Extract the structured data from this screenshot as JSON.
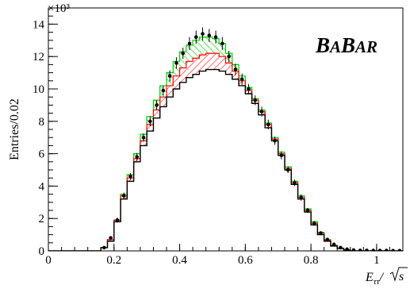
{
  "chart_data": {
    "type": "histogram",
    "title": "",
    "brand": {
      "lead1": "B",
      "rest1": "A",
      "lead2": "B",
      "rest2": "AR"
    },
    "ylabel": "Entries/0.02",
    "yscale_label": "×10³",
    "xlabel": {
      "main": "E",
      "sub": "ττ",
      "div": "/",
      "sqrt_arg": "s"
    },
    "xlim": [
      0,
      1.08
    ],
    "ylim": [
      0,
      15
    ],
    "xticks": [
      0,
      0.2,
      0.4,
      0.6,
      0.8,
      1
    ],
    "xtick_labels": [
      "0",
      "0.2",
      "0.4",
      "0.6",
      "0.8",
      "1"
    ],
    "yticks": [
      0,
      2,
      4,
      6,
      8,
      10,
      12,
      14
    ],
    "ytick_labels": [
      "0",
      "2",
      "4",
      "6",
      "8",
      "10",
      "12",
      "14"
    ],
    "grid": false,
    "bin_width": 0.02,
    "bin_start": 0.0,
    "colors": {
      "base": "#000000",
      "band_red": "#ff0000",
      "band_green": "#00cc00",
      "data": "#000000"
    },
    "series": [
      {
        "role": "base-mc",
        "values": [
          0,
          0,
          0,
          0,
          0,
          0,
          0,
          0,
          0.2,
          0.6,
          1.8,
          3.2,
          4.3,
          5.5,
          6.5,
          7.4,
          8.2,
          8.9,
          9.5,
          10.0,
          10.4,
          10.7,
          10.9,
          11.1,
          11.2,
          11.2,
          11.1,
          10.9,
          10.6,
          10.2,
          9.7,
          9.1,
          8.4,
          7.6,
          6.8,
          5.9,
          5.0,
          4.1,
          3.2,
          2.4,
          1.6,
          1.0,
          0.6,
          0.3,
          0.15,
          0.05,
          0,
          0,
          0,
          0,
          0,
          0,
          0,
          0
        ]
      },
      {
        "role": "red-band-top",
        "values": [
          0,
          0,
          0,
          0,
          0,
          0,
          0,
          0,
          0.2,
          0.7,
          1.9,
          3.4,
          4.5,
          5.7,
          6.8,
          7.8,
          8.7,
          9.5,
          10.2,
          10.8,
          11.3,
          11.7,
          11.9,
          12.1,
          12.2,
          12.2,
          12.0,
          11.6,
          11.1,
          10.5,
          9.9,
          9.3,
          8.6,
          7.8,
          6.9,
          6.0,
          5.1,
          4.2,
          3.3,
          2.5,
          1.7,
          1.1,
          0.65,
          0.32,
          0.16,
          0.05,
          0,
          0,
          0,
          0,
          0,
          0,
          0,
          0
        ]
      },
      {
        "role": "green-band-top",
        "values": [
          0,
          0,
          0,
          0,
          0,
          0,
          0,
          0,
          0.2,
          0.7,
          1.9,
          3.5,
          4.7,
          6.0,
          7.2,
          8.3,
          9.3,
          10.2,
          11.0,
          11.7,
          12.3,
          12.7,
          13.0,
          13.2,
          13.2,
          13.1,
          12.8,
          12.2,
          11.5,
          10.8,
          10.1,
          9.4,
          8.7,
          7.9,
          7.0,
          6.1,
          5.2,
          4.3,
          3.4,
          2.6,
          1.8,
          1.15,
          0.7,
          0.35,
          0.17,
          0.06,
          0,
          0,
          0,
          0,
          0,
          0,
          0,
          0
        ]
      },
      {
        "role": "data-points",
        "x": [
          0.01,
          0.03,
          0.05,
          0.07,
          0.09,
          0.11,
          0.13,
          0.15,
          0.17,
          0.19,
          0.21,
          0.23,
          0.25,
          0.27,
          0.29,
          0.31,
          0.33,
          0.35,
          0.37,
          0.39,
          0.41,
          0.43,
          0.45,
          0.47,
          0.49,
          0.51,
          0.53,
          0.55,
          0.57,
          0.59,
          0.61,
          0.63,
          0.65,
          0.67,
          0.69,
          0.71,
          0.73,
          0.75,
          0.77,
          0.79,
          0.81,
          0.83,
          0.85,
          0.87,
          0.89,
          0.91,
          0.93,
          0.95,
          0.97,
          0.99,
          1.01,
          1.03,
          1.05,
          1.07
        ],
        "values": [
          0,
          0,
          0,
          0,
          0,
          0,
          0,
          0,
          0.2,
          0.8,
          1.9,
          3.4,
          4.6,
          5.8,
          7.0,
          8.0,
          9.0,
          9.9,
          10.8,
          11.6,
          12.2,
          12.8,
          13.2,
          13.4,
          13.3,
          13.2,
          12.8,
          12.0,
          11.2,
          10.6,
          10.0,
          9.3,
          8.6,
          7.8,
          6.8,
          5.9,
          5.0,
          4.2,
          3.3,
          2.5,
          1.7,
          1.1,
          0.7,
          0.4,
          0.2,
          0.1,
          0.05,
          0.03,
          0.03,
          0.02,
          0.02,
          0.02,
          0.01,
          0.01
        ],
        "errors": [
          0,
          0,
          0,
          0,
          0,
          0,
          0,
          0,
          0.1,
          0.1,
          0.15,
          0.2,
          0.2,
          0.25,
          0.25,
          0.3,
          0.3,
          0.3,
          0.35,
          0.35,
          0.35,
          0.4,
          0.4,
          0.4,
          0.4,
          0.4,
          0.4,
          0.35,
          0.35,
          0.35,
          0.3,
          0.3,
          0.3,
          0.3,
          0.25,
          0.25,
          0.2,
          0.2,
          0.2,
          0.15,
          0.15,
          0.1,
          0.1,
          0.1,
          0.05,
          0.05,
          0,
          0,
          0,
          0,
          0,
          0,
          0,
          0
        ]
      }
    ]
  }
}
